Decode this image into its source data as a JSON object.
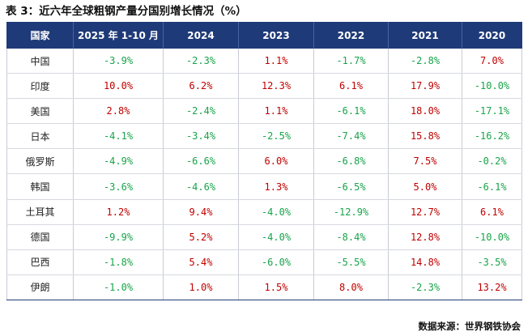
{
  "title": "表 3：近六年全球粗钢产量分国别增长情况（%）",
  "table": {
    "headers": [
      "国家",
      "2025 年 1-10 月",
      "2024",
      "2023",
      "2022",
      "2021",
      "2020"
    ],
    "rows": [
      {
        "country": "中国",
        "values": [
          "-3.9%",
          "-2.3%",
          "1.1%",
          "-1.7%",
          "-2.8%",
          "7.0%"
        ]
      },
      {
        "country": "印度",
        "values": [
          "10.0%",
          "6.2%",
          "12.3%",
          "6.1%",
          "17.9%",
          "-10.0%"
        ]
      },
      {
        "country": "美国",
        "values": [
          "2.8%",
          "-2.4%",
          "1.1%",
          "-6.1%",
          "18.0%",
          "-17.1%"
        ]
      },
      {
        "country": "日本",
        "values": [
          "-4.1%",
          "-3.4%",
          "-2.5%",
          "-7.4%",
          "15.8%",
          "-16.2%"
        ]
      },
      {
        "country": "俄罗斯",
        "values": [
          "-4.9%",
          "-6.6%",
          "6.0%",
          "-6.8%",
          "7.5%",
          "-0.2%"
        ]
      },
      {
        "country": "韩国",
        "values": [
          "-3.6%",
          "-4.6%",
          "1.3%",
          "-6.5%",
          "5.0%",
          "-6.1%"
        ]
      },
      {
        "country": "土耳其",
        "values": [
          "1.2%",
          "9.4%",
          "-4.0%",
          "-12.9%",
          "12.7%",
          "6.1%"
        ]
      },
      {
        "country": "德国",
        "values": [
          "-9.9%",
          "5.2%",
          "-4.0%",
          "-8.4%",
          "12.8%",
          "-10.0%"
        ]
      },
      {
        "country": "巴西",
        "values": [
          "-1.8%",
          "5.4%",
          "-6.0%",
          "-5.5%",
          "14.8%",
          "-3.5%"
        ]
      },
      {
        "country": "伊朗",
        "values": [
          "-1.0%",
          "1.0%",
          "1.5%",
          "8.0%",
          "-2.3%",
          "13.2%"
        ]
      }
    ]
  },
  "colors": {
    "header_bg": "#1f3a78",
    "positive": "#c00000",
    "negative": "#19a34a"
  },
  "source": "数据来源：世界钢铁协会"
}
